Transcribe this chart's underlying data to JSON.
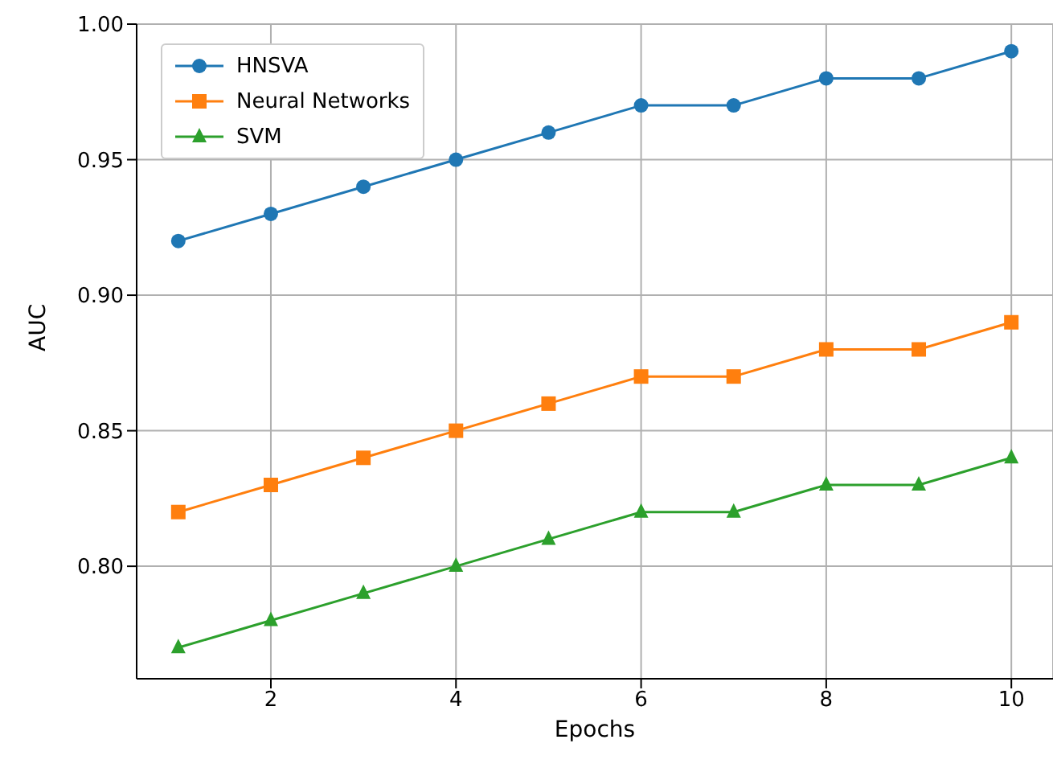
{
  "chart_data": {
    "type": "line",
    "xlabel": "Epochs",
    "ylabel": "AUC",
    "x": [
      1,
      2,
      3,
      4,
      5,
      6,
      7,
      8,
      9,
      10
    ],
    "series": [
      {
        "name": "HNSVA",
        "color": "#1f77b4",
        "marker": "circle",
        "values": [
          0.92,
          0.93,
          0.94,
          0.95,
          0.96,
          0.97,
          0.97,
          0.98,
          0.98,
          0.99
        ]
      },
      {
        "name": "Neural Networks",
        "color": "#ff7f0e",
        "marker": "square",
        "values": [
          0.82,
          0.83,
          0.84,
          0.85,
          0.86,
          0.87,
          0.87,
          0.88,
          0.88,
          0.89
        ]
      },
      {
        "name": "SVM",
        "color": "#2ca02c",
        "marker": "triangle",
        "values": [
          0.77,
          0.78,
          0.79,
          0.8,
          0.81,
          0.82,
          0.82,
          0.83,
          0.83,
          0.84
        ]
      }
    ],
    "xlim": [
      0.55,
      10.45
    ],
    "xticks": [
      2,
      4,
      6,
      8,
      10
    ],
    "ylim": [
      0.7585,
      1.0
    ],
    "yticks": [
      {
        "value": 0.8,
        "label": "0.80"
      },
      {
        "value": 0.85,
        "label": "0.85"
      },
      {
        "value": 0.9,
        "label": "0.90"
      },
      {
        "value": 0.95,
        "label": "0.95"
      },
      {
        "value": 1.0,
        "label": "1.00"
      }
    ],
    "grid": true,
    "legend": "top left",
    "line_style": "solid"
  }
}
